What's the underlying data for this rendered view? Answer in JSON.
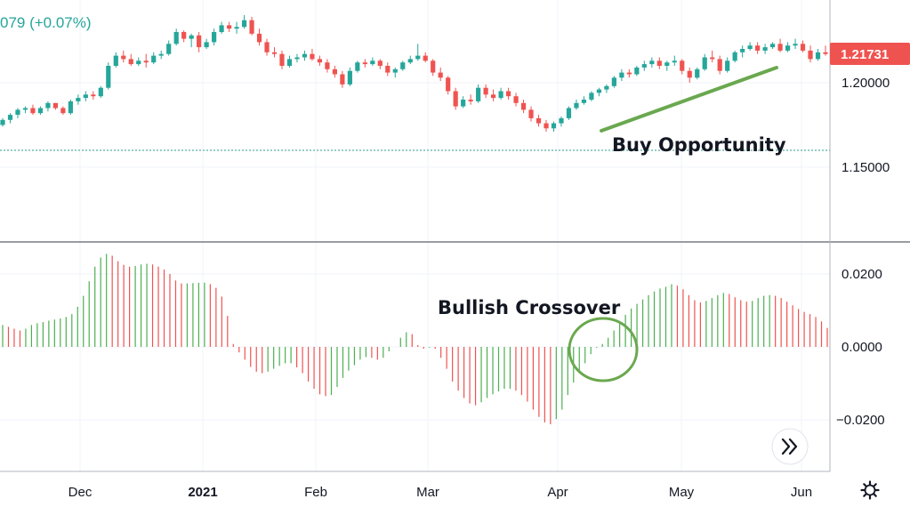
{
  "header": {
    "change_text": "079 (+0.07%)"
  },
  "price_tag": {
    "value": "1.21731",
    "color": "#ef5350"
  },
  "annotations": {
    "buy": "Buy Opportunity",
    "bullish": "Bullish Crossover",
    "trendline_color": "#6aa84f",
    "circle_color": "#6aa84f"
  },
  "icons": {
    "scroll": "double-chevron-right-icon",
    "settings": "gear-icon"
  },
  "colors": {
    "up": "#26a69a",
    "down": "#ef5350",
    "hist_up": "#4caf50",
    "hist_down": "#ef5350",
    "grid": "#f0f3fa"
  },
  "chart_data": [
    {
      "type": "candlestick",
      "title": "",
      "x_ticks": [
        "Dec",
        "2021",
        "Feb",
        "Mar",
        "Apr",
        "May",
        "Jun"
      ],
      "y_ticks": [
        "1.20000",
        "1.15000"
      ],
      "ylim": [
        1.1215,
        1.2615
      ],
      "grid": true,
      "reference_line": 1.16,
      "last_price": 1.21731,
      "ohlc": [
        [
          1.175,
          1.179,
          1.174,
          1.178
        ],
        [
          1.178,
          1.182,
          1.176,
          1.181
        ],
        [
          1.181,
          1.185,
          1.179,
          1.184
        ],
        [
          1.184,
          1.186,
          1.182,
          1.185
        ],
        [
          1.185,
          1.187,
          1.181,
          1.182
        ],
        [
          1.182,
          1.186,
          1.181,
          1.185
        ],
        [
          1.185,
          1.189,
          1.183,
          1.188
        ],
        [
          1.188,
          1.188,
          1.184,
          1.185
        ],
        [
          1.185,
          1.186,
          1.181,
          1.182
        ],
        [
          1.182,
          1.19,
          1.181,
          1.189
        ],
        [
          1.189,
          1.193,
          1.187,
          1.191
        ],
        [
          1.191,
          1.195,
          1.189,
          1.193
        ],
        [
          1.193,
          1.195,
          1.19,
          1.192
        ],
        [
          1.192,
          1.198,
          1.191,
          1.197
        ],
        [
          1.197,
          1.212,
          1.196,
          1.21
        ],
        [
          1.21,
          1.218,
          1.209,
          1.216
        ],
        [
          1.216,
          1.219,
          1.212,
          1.214
        ],
        [
          1.214,
          1.217,
          1.21,
          1.211
        ],
        [
          1.211,
          1.215,
          1.21,
          1.213
        ],
        [
          1.213,
          1.217,
          1.209,
          1.212
        ],
        [
          1.212,
          1.218,
          1.211,
          1.216
        ],
        [
          1.216,
          1.219,
          1.214,
          1.217
        ],
        [
          1.217,
          1.225,
          1.216,
          1.223
        ],
        [
          1.223,
          1.232,
          1.222,
          1.23
        ],
        [
          1.23,
          1.231,
          1.224,
          1.226
        ],
        [
          1.226,
          1.229,
          1.221,
          1.228
        ],
        [
          1.228,
          1.23,
          1.218,
          1.221
        ],
        [
          1.221,
          1.226,
          1.22,
          1.224
        ],
        [
          1.224,
          1.232,
          1.222,
          1.23
        ],
        [
          1.23,
          1.236,
          1.229,
          1.234
        ],
        [
          1.234,
          1.236,
          1.23,
          1.232
        ],
        [
          1.232,
          1.236,
          1.229,
          1.233
        ],
        [
          1.233,
          1.24,
          1.232,
          1.237
        ],
        [
          1.237,
          1.239,
          1.228,
          1.229
        ],
        [
          1.229,
          1.232,
          1.222,
          1.224
        ],
        [
          1.224,
          1.226,
          1.216,
          1.218
        ],
        [
          1.218,
          1.221,
          1.215,
          1.217
        ],
        [
          1.217,
          1.219,
          1.208,
          1.21
        ],
        [
          1.21,
          1.216,
          1.209,
          1.214
        ],
        [
          1.214,
          1.217,
          1.212,
          1.215
        ],
        [
          1.215,
          1.219,
          1.213,
          1.217
        ],
        [
          1.217,
          1.22,
          1.213,
          1.214
        ],
        [
          1.214,
          1.216,
          1.21,
          1.212
        ],
        [
          1.212,
          1.214,
          1.206,
          1.208
        ],
        [
          1.208,
          1.21,
          1.203,
          1.205
        ],
        [
          1.205,
          1.207,
          1.197,
          1.199
        ],
        [
          1.199,
          1.209,
          1.198,
          1.207
        ],
        [
          1.207,
          1.213,
          1.206,
          1.212
        ],
        [
          1.212,
          1.214,
          1.209,
          1.211
        ],
        [
          1.211,
          1.215,
          1.21,
          1.213
        ],
        [
          1.213,
          1.214,
          1.208,
          1.21
        ],
        [
          1.21,
          1.212,
          1.204,
          1.206
        ],
        [
          1.206,
          1.209,
          1.203,
          1.208
        ],
        [
          1.208,
          1.213,
          1.207,
          1.212
        ],
        [
          1.212,
          1.216,
          1.211,
          1.214
        ],
        [
          1.214,
          1.223,
          1.213,
          1.216
        ],
        [
          1.216,
          1.218,
          1.212,
          1.213
        ],
        [
          1.213,
          1.214,
          1.204,
          1.206
        ],
        [
          1.206,
          1.209,
          1.201,
          1.203
        ],
        [
          1.203,
          1.204,
          1.193,
          1.195
        ],
        [
          1.195,
          1.197,
          1.184,
          1.186
        ],
        [
          1.186,
          1.192,
          1.185,
          1.19
        ],
        [
          1.19,
          1.193,
          1.187,
          1.189
        ],
        [
          1.189,
          1.199,
          1.188,
          1.197
        ],
        [
          1.197,
          1.199,
          1.191,
          1.193
        ],
        [
          1.193,
          1.196,
          1.189,
          1.191
        ],
        [
          1.191,
          1.197,
          1.19,
          1.195
        ],
        [
          1.195,
          1.197,
          1.19,
          1.192
        ],
        [
          1.192,
          1.194,
          1.186,
          1.188
        ],
        [
          1.188,
          1.19,
          1.182,
          1.184
        ],
        [
          1.184,
          1.186,
          1.177,
          1.179
        ],
        [
          1.179,
          1.181,
          1.174,
          1.176
        ],
        [
          1.176,
          1.178,
          1.171,
          1.173
        ],
        [
          1.173,
          1.177,
          1.171,
          1.176
        ],
        [
          1.176,
          1.18,
          1.174,
          1.179
        ],
        [
          1.179,
          1.186,
          1.178,
          1.185
        ],
        [
          1.185,
          1.19,
          1.184,
          1.188
        ],
        [
          1.188,
          1.192,
          1.187,
          1.19
        ],
        [
          1.19,
          1.195,
          1.189,
          1.194
        ],
        [
          1.194,
          1.197,
          1.192,
          1.196
        ],
        [
          1.196,
          1.199,
          1.194,
          1.198
        ],
        [
          1.198,
          1.204,
          1.197,
          1.203
        ],
        [
          1.203,
          1.208,
          1.201,
          1.206
        ],
        [
          1.206,
          1.208,
          1.203,
          1.205
        ],
        [
          1.205,
          1.21,
          1.204,
          1.209
        ],
        [
          1.209,
          1.213,
          1.207,
          1.211
        ],
        [
          1.211,
          1.215,
          1.209,
          1.213
        ],
        [
          1.213,
          1.215,
          1.208,
          1.21
        ],
        [
          1.21,
          1.213,
          1.207,
          1.212
        ],
        [
          1.212,
          1.216,
          1.21,
          1.213
        ],
        [
          1.213,
          1.214,
          1.205,
          1.207
        ],
        [
          1.207,
          1.209,
          1.2,
          1.203
        ],
        [
          1.203,
          1.209,
          1.202,
          1.208
        ],
        [
          1.208,
          1.217,
          1.207,
          1.215
        ],
        [
          1.215,
          1.219,
          1.212,
          1.214
        ],
        [
          1.214,
          1.216,
          1.205,
          1.207
        ],
        [
          1.207,
          1.215,
          1.206,
          1.213
        ],
        [
          1.213,
          1.219,
          1.212,
          1.218
        ],
        [
          1.218,
          1.222,
          1.215,
          1.22
        ],
        [
          1.22,
          1.224,
          1.219,
          1.222
        ],
        [
          1.222,
          1.224,
          1.217,
          1.219
        ],
        [
          1.219,
          1.223,
          1.217,
          1.221
        ],
        [
          1.221,
          1.224,
          1.22,
          1.223
        ],
        [
          1.223,
          1.226,
          1.218,
          1.219
        ],
        [
          1.219,
          1.224,
          1.218,
          1.222
        ],
        [
          1.222,
          1.226,
          1.22,
          1.223
        ],
        [
          1.223,
          1.225,
          1.218,
          1.219
        ],
        [
          1.219,
          1.222,
          1.212,
          1.214
        ],
        [
          1.214,
          1.22,
          1.213,
          1.218
        ],
        [
          1.218,
          1.222,
          1.216,
          1.217
        ]
      ]
    },
    {
      "type": "bar",
      "title": "",
      "y_ticks": [
        "0.0200",
        "0.0000",
        "−0.0200"
      ],
      "ylim": [
        -0.0255,
        0.0295
      ],
      "grid": true,
      "values": [
        0.006,
        0.0055,
        0.005,
        0.0045,
        0.005,
        0.006,
        0.0065,
        0.0068,
        0.0072,
        0.0075,
        0.0078,
        0.0082,
        0.009,
        0.011,
        0.014,
        0.018,
        0.022,
        0.0245,
        0.0255,
        0.025,
        0.0235,
        0.0225,
        0.022,
        0.0222,
        0.0226,
        0.0228,
        0.0226,
        0.022,
        0.0212,
        0.02,
        0.0182,
        0.0174,
        0.0174,
        0.0175,
        0.0176,
        0.0176,
        0.0172,
        0.0162,
        0.0138,
        0.0085,
        0.0008,
        -0.0015,
        -0.0035,
        -0.0055,
        -0.0068,
        -0.0072,
        -0.0068,
        -0.006,
        -0.0052,
        -0.0045,
        -0.0045,
        -0.0056,
        -0.0072,
        -0.0095,
        -0.0115,
        -0.013,
        -0.0135,
        -0.0132,
        -0.011,
        -0.0085,
        -0.0065,
        -0.005,
        -0.0035,
        -0.0028,
        -0.003,
        -0.0035,
        -0.003,
        -0.0012,
        0.0,
        0.0025,
        0.004,
        0.0035,
        0.0005,
        -0.0005,
        -0.0002,
        -0.0005,
        -0.003,
        -0.006,
        -0.0095,
        -0.012,
        -0.014,
        -0.0155,
        -0.016,
        -0.0152,
        -0.014,
        -0.013,
        -0.0122,
        -0.0115,
        -0.0115,
        -0.012,
        -0.0132,
        -0.015,
        -0.0172,
        -0.0192,
        -0.0207,
        -0.0212,
        -0.0198,
        -0.0172,
        -0.0132,
        -0.0098,
        -0.0068,
        -0.0045,
        -0.002,
        -0.0002,
        0.0008,
        0.0025,
        0.0045,
        0.0065,
        0.0088,
        0.0105,
        0.0118,
        0.013,
        0.0142,
        0.0152,
        0.016,
        0.0165,
        0.0172,
        0.0168,
        0.0158,
        0.0142,
        0.0128,
        0.0122,
        0.0126,
        0.0134,
        0.0142,
        0.0148,
        0.0145,
        0.0136,
        0.0128,
        0.0124,
        0.0126,
        0.0134,
        0.014,
        0.0142,
        0.014,
        0.0134,
        0.0124,
        0.0114,
        0.0104,
        0.0096,
        0.009,
        0.0082,
        0.007,
        0.0052
      ]
    }
  ]
}
